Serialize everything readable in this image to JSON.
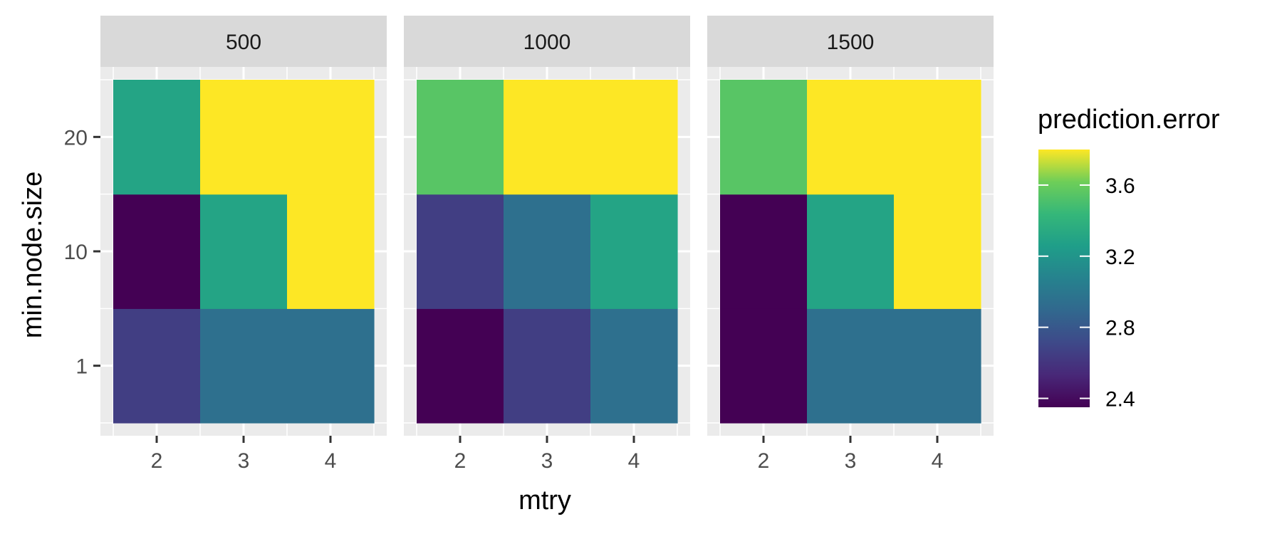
{
  "chart_data": {
    "type": "heatmap",
    "facet_variable_values": [
      "500",
      "1000",
      "1500"
    ],
    "x_categories": [
      "2",
      "3",
      "4"
    ],
    "y_categories": [
      "1",
      "10",
      "20"
    ],
    "xlabel": "mtry",
    "ylabel": "min.node.size",
    "legend": {
      "title": "prediction.error",
      "ticks": [
        2.4,
        2.8,
        3.2,
        3.6
      ],
      "tick_labels": [
        "2.4",
        "2.8",
        "3.2",
        "3.6"
      ],
      "range": [
        2.35,
        3.8
      ],
      "placement": "right",
      "palette": "viridis"
    },
    "panels": [
      {
        "facet": "500",
        "values": {
          "20": {
            "2": 3.3,
            "3": 3.8,
            "4": 3.8
          },
          "10": {
            "2": 2.35,
            "3": 3.3,
            "4": 3.8
          },
          "1": {
            "2": 2.65,
            "3": 2.95,
            "4": 2.95
          }
        }
      },
      {
        "facet": "1000",
        "values": {
          "20": {
            "2": 3.55,
            "3": 3.8,
            "4": 3.8
          },
          "10": {
            "2": 2.65,
            "3": 2.95,
            "4": 3.3
          },
          "1": {
            "2": 2.35,
            "3": 2.65,
            "4": 2.95
          }
        }
      },
      {
        "facet": "1500",
        "values": {
          "20": {
            "2": 3.55,
            "3": 3.8,
            "4": 3.8
          },
          "10": {
            "2": 2.35,
            "3": 3.3,
            "4": 3.8
          },
          "1": {
            "2": 2.35,
            "3": 2.95,
            "4": 2.95
          }
        }
      }
    ],
    "grid": true,
    "panel_background": "#ebebeb",
    "strip_background": "#d9d9d9"
  }
}
